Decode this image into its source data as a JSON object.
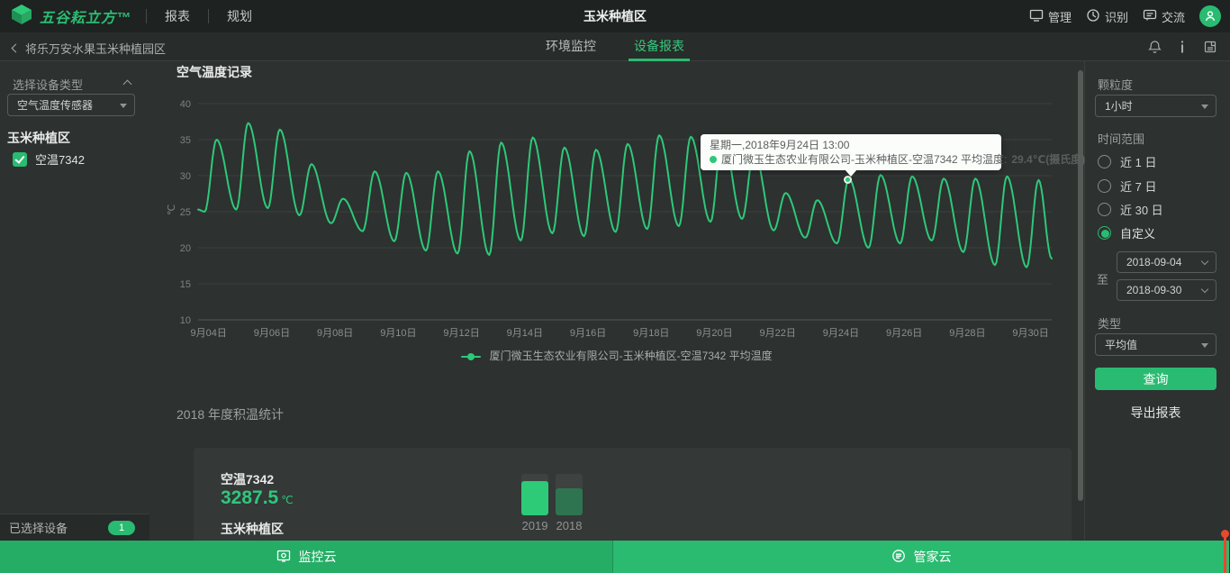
{
  "colors": {
    "accent_green": "#2abb72",
    "line_green": "#2ec878",
    "bar_2019": "#2dcb78",
    "bar_2018": "#2e7450",
    "topbar_bg": "#1e2221",
    "body_bg": "#2d3130",
    "tooltip_bg": "#fbfdfb",
    "red_indicator": "#e64a2e"
  },
  "topbar": {
    "brand": "五谷耘立方™",
    "menu": [
      {
        "label": "报表"
      },
      {
        "label": "规划"
      }
    ],
    "title": "玉米种植区",
    "actions": [
      {
        "label": "管理",
        "icon": "monitor-icon"
      },
      {
        "label": "识别",
        "icon": "recognize-icon"
      },
      {
        "label": "交流",
        "icon": "chat-icon"
      }
    ]
  },
  "subbar": {
    "breadcrumb": "将乐万安水果玉米种植园区",
    "tabs": [
      {
        "label": "环境监控",
        "active": false
      },
      {
        "label": "设备报表",
        "active": true
      }
    ]
  },
  "left_panel": {
    "section_label": "选择设备类型",
    "device_type_select": "空气温度传感器",
    "group_title": "玉米种植区",
    "devices": [
      {
        "label": "空温7342",
        "checked": true
      }
    ],
    "footer_label": "已选择设备",
    "selected_count": "1"
  },
  "right_panel": {
    "granularity_label": "颗粒度",
    "granularity_select": "1小时",
    "time_range_label": "时间范围",
    "time_options": [
      {
        "label": "近 1 日",
        "selected": false
      },
      {
        "label": "近 7 日",
        "selected": false
      },
      {
        "label": "近 30 日",
        "selected": false
      },
      {
        "label": "自定义",
        "selected": true
      }
    ],
    "date_from": "2018-09-04",
    "to_label": "至",
    "date_to": "2018-09-30",
    "type_label": "类型",
    "type_select": "平均值",
    "query_button": "查询",
    "export_button": "导出报表"
  },
  "chart_section": {
    "title": "空气温度记录",
    "legend": "厦门微玉生态农业有限公司-玉米种植区-空温7342 平均温度",
    "tooltip": {
      "line1": "星期一,2018年9月24日 13:00",
      "series_label": "厦门微玉生态农业有限公司-玉米种植区-空温7342 平均温度:",
      "value": "29.4℃(摄氏度)"
    }
  },
  "accumulated_section": {
    "title": "2018 年度积温统计",
    "device": "空温7342",
    "value": "3287.5",
    "unit": "℃",
    "area": "玉米种植区",
    "years": [
      {
        "label": "2019",
        "color": "#2dcb78",
        "fill_ratio": 0.82
      },
      {
        "label": "2018",
        "color": "#2e7450",
        "fill_ratio": 0.65
      }
    ]
  },
  "bottom_bar": {
    "left_label": "监控云",
    "right_label": "管家云"
  },
  "chart_data": [
    {
      "type": "line",
      "title": "空气温度记录",
      "ylabel": "℃",
      "ylim": [
        10,
        40
      ],
      "yticks": [
        10,
        15,
        20,
        25,
        30,
        35,
        40
      ],
      "x_tick_labels": [
        "9月04日",
        "9月06日",
        "9月08日",
        "9月10日",
        "9月12日",
        "9月14日",
        "9月16日",
        "9月18日",
        "9月20日",
        "9月22日",
        "9月24日",
        "9月26日",
        "9月28日",
        "9月30日"
      ],
      "grid": true,
      "legend_position": "bottom",
      "series": [
        {
          "name": "厦门微玉生态农业有限公司-玉米种植区-空温7342 平均温度",
          "color": "#2ec878",
          "daily_min_max": [
            {
              "date": "2018-09-04",
              "min": 25.0,
              "max": 35.0
            },
            {
              "date": "2018-09-05",
              "min": 25.3,
              "max": 37.3
            },
            {
              "date": "2018-09-06",
              "min": 25.5,
              "max": 36.4
            },
            {
              "date": "2018-09-07",
              "min": 24.5,
              "max": 31.6
            },
            {
              "date": "2018-09-08",
              "min": 23.4,
              "max": 26.8
            },
            {
              "date": "2018-09-09",
              "min": 22.3,
              "max": 30.6
            },
            {
              "date": "2018-09-10",
              "min": 20.9,
              "max": 30.4
            },
            {
              "date": "2018-09-11",
              "min": 19.6,
              "max": 30.6
            },
            {
              "date": "2018-09-12",
              "min": 19.2,
              "max": 33.4
            },
            {
              "date": "2018-09-13",
              "min": 19.0,
              "max": 34.6
            },
            {
              "date": "2018-09-14",
              "min": 21.0,
              "max": 35.3
            },
            {
              "date": "2018-09-15",
              "min": 22.0,
              "max": 33.9
            },
            {
              "date": "2018-09-16",
              "min": 21.6,
              "max": 33.6
            },
            {
              "date": "2018-09-17",
              "min": 22.2,
              "max": 34.4
            },
            {
              "date": "2018-09-18",
              "min": 22.6,
              "max": 35.6
            },
            {
              "date": "2018-09-19",
              "min": 23.0,
              "max": 35.4
            },
            {
              "date": "2018-09-20",
              "min": 23.6,
              "max": 35.6
            },
            {
              "date": "2018-09-21",
              "min": 24.0,
              "max": 33.4
            },
            {
              "date": "2018-09-22",
              "min": 22.4,
              "max": 27.6
            },
            {
              "date": "2018-09-23",
              "min": 21.4,
              "max": 26.6
            },
            {
              "date": "2018-09-24",
              "min": 20.6,
              "max": 29.6
            },
            {
              "date": "2018-09-25",
              "min": 20.0,
              "max": 30.1
            },
            {
              "date": "2018-09-26",
              "min": 20.6,
              "max": 29.9
            },
            {
              "date": "2018-09-27",
              "min": 21.0,
              "max": 29.6
            },
            {
              "date": "2018-09-28",
              "min": 19.4,
              "max": 29.6
            },
            {
              "date": "2018-09-29",
              "min": 17.6,
              "max": 29.9
            },
            {
              "date": "2018-09-30",
              "min": 17.3,
              "max": 29.4
            }
          ]
        }
      ],
      "highlight_point": {
        "date": "2018-09-24",
        "hour": 13,
        "value": 29.4
      }
    },
    {
      "type": "bar",
      "title": "2018 年度积温统计",
      "categories": [
        "2019",
        "2018"
      ],
      "values": [
        null,
        null
      ],
      "bar_fill_ratios": [
        0.82,
        0.65
      ],
      "bar_colors": [
        "#2dcb78",
        "#2e7450"
      ],
      "metric": {
        "device": "空温7342",
        "value": 3287.5,
        "unit": "℃",
        "area": "玉米种植区"
      }
    }
  ]
}
